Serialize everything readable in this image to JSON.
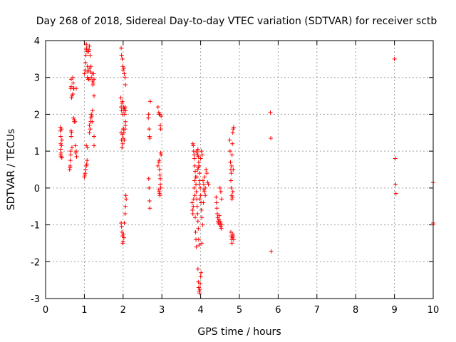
{
  "chart_data": {
    "type": "scatter",
    "title": "Day 268 of 2018, Sidereal Day-to-day VTEC variation (SDTVAR) for receiver sctb",
    "xlabel": "GPS time / hours",
    "ylabel": "SDTVAR / TECUs",
    "xlim": [
      0,
      10
    ],
    "ylim": [
      -3,
      4
    ],
    "xticks": [
      "0",
      "1",
      "2",
      "3",
      "4",
      "5",
      "6",
      "7",
      "8",
      "9",
      "10"
    ],
    "yticks": [
      "-3",
      "-2",
      "-1",
      "0",
      "1",
      "2",
      "3",
      "4"
    ],
    "grid": true,
    "marker": "plus",
    "color": "#ff0000",
    "series": [
      {
        "name": "SDTVAR",
        "points": [
          [
            0.38,
            1.65
          ],
          [
            0.38,
            1.55
          ],
          [
            0.39,
            1.4
          ],
          [
            0.39,
            1.2
          ],
          [
            0.39,
            1.05
          ],
          [
            0.39,
            0.9
          ],
          [
            0.4,
            0.85
          ],
          [
            0.4,
            0.95
          ],
          [
            0.41,
            1.15
          ],
          [
            0.41,
            1.6
          ],
          [
            0.42,
            1.3
          ],
          [
            0.42,
            0.82
          ],
          [
            0.62,
            0.5
          ],
          [
            0.63,
            0.55
          ],
          [
            0.63,
            0.6
          ],
          [
            0.64,
            0.75
          ],
          [
            0.65,
            0.9
          ],
          [
            0.65,
            1.0
          ],
          [
            0.66,
            1.4
          ],
          [
            0.67,
            1.5
          ],
          [
            0.68,
            1.1
          ],
          [
            0.66,
            1.55
          ],
          [
            0.65,
            2.7
          ],
          [
            0.66,
            2.75
          ],
          [
            0.66,
            2.95
          ],
          [
            0.67,
            2.45
          ],
          [
            0.68,
            2.5
          ],
          [
            0.7,
            2.55
          ],
          [
            0.7,
            3.0
          ],
          [
            0.71,
            2.85
          ],
          [
            0.72,
            2.7
          ],
          [
            0.73,
            2.7
          ],
          [
            0.72,
            1.9
          ],
          [
            0.74,
            1.85
          ],
          [
            0.74,
            1.8
          ],
          [
            0.76,
            1.8
          ],
          [
            0.77,
            1.15
          ],
          [
            0.78,
            0.95
          ],
          [
            0.79,
            1.0
          ],
          [
            0.8,
            0.85
          ],
          [
            0.79,
            2.7
          ],
          [
            1.0,
            0.3
          ],
          [
            1.01,
            0.35
          ],
          [
            1.02,
            0.4
          ],
          [
            1.03,
            0.5
          ],
          [
            1.05,
            0.6
          ],
          [
            1.06,
            0.65
          ],
          [
            1.07,
            0.75
          ],
          [
            1.05,
            1.15
          ],
          [
            1.08,
            1.1
          ],
          [
            1.0,
            3.1
          ],
          [
            1.02,
            3.2
          ],
          [
            1.03,
            3.4
          ],
          [
            1.04,
            3.6
          ],
          [
            1.05,
            3.75
          ],
          [
            1.05,
            3.9
          ],
          [
            1.06,
            3.8
          ],
          [
            1.07,
            3.7
          ],
          [
            1.08,
            3.3
          ],
          [
            1.08,
            3.0
          ],
          [
            1.09,
            3.15
          ],
          [
            1.1,
            3.2
          ],
          [
            1.11,
            3.7
          ],
          [
            1.12,
            3.75
          ],
          [
            1.13,
            3.85
          ],
          [
            1.14,
            3.25
          ],
          [
            1.15,
            3.6
          ],
          [
            1.16,
            3.15
          ],
          [
            1.17,
            3.3
          ],
          [
            1.18,
            3.0
          ],
          [
            1.1,
            2.95
          ],
          [
            1.12,
            2.95
          ],
          [
            1.13,
            1.7
          ],
          [
            1.13,
            1.5
          ],
          [
            1.15,
            1.6
          ],
          [
            1.16,
            1.8
          ],
          [
            1.17,
            1.9
          ],
          [
            1.18,
            2.0
          ],
          [
            1.19,
            1.95
          ],
          [
            1.2,
            1.8
          ],
          [
            1.21,
            2.1
          ],
          [
            1.2,
            3.1
          ],
          [
            1.21,
            2.9
          ],
          [
            1.22,
            2.8
          ],
          [
            1.23,
            2.85
          ],
          [
            1.24,
            3.1
          ],
          [
            1.25,
            2.95
          ],
          [
            1.25,
            2.5
          ],
          [
            1.25,
            1.15
          ],
          [
            1.25,
            1.4
          ],
          [
            1.95,
            3.8
          ],
          [
            1.96,
            3.6
          ],
          [
            1.98,
            3.5
          ],
          [
            1.99,
            3.3
          ],
          [
            2.0,
            3.2
          ],
          [
            2.02,
            3.25
          ],
          [
            2.03,
            3.1
          ],
          [
            2.05,
            3.0
          ],
          [
            2.06,
            2.8
          ],
          [
            1.94,
            2.45
          ],
          [
            1.95,
            2.2
          ],
          [
            1.96,
            2.1
          ],
          [
            1.97,
            2.3
          ],
          [
            1.98,
            2.35
          ],
          [
            1.99,
            2.0
          ],
          [
            2.0,
            1.6
          ],
          [
            2.01,
            2.2
          ],
          [
            2.02,
            2.1
          ],
          [
            2.03,
            2.15
          ],
          [
            2.04,
            2.0
          ],
          [
            2.05,
            2.2
          ],
          [
            2.06,
            1.8
          ],
          [
            2.07,
            2.1
          ],
          [
            1.95,
            1.5
          ],
          [
            1.96,
            1.3
          ],
          [
            1.97,
            1.1
          ],
          [
            1.98,
            1.45
          ],
          [
            1.99,
            1.2
          ],
          [
            2.0,
            1.35
          ],
          [
            2.01,
            1.6
          ],
          [
            2.02,
            1.5
          ],
          [
            2.03,
            1.3
          ],
          [
            2.05,
            1.6
          ],
          [
            2.06,
            1.7
          ],
          [
            1.95,
            -0.95
          ],
          [
            1.96,
            -1.05
          ],
          [
            1.97,
            -1.2
          ],
          [
            1.98,
            -1.3
          ],
          [
            1.99,
            -1.5
          ],
          [
            2.0,
            -1.45
          ],
          [
            2.01,
            -1.25
          ],
          [
            2.02,
            -1.35
          ],
          [
            2.03,
            -0.95
          ],
          [
            2.05,
            -0.7
          ],
          [
            2.06,
            -0.5
          ],
          [
            2.07,
            -0.2
          ],
          [
            2.08,
            -0.3
          ],
          [
            2.65,
            1.9
          ],
          [
            2.66,
            2.0
          ],
          [
            2.67,
            1.6
          ],
          [
            2.68,
            1.4
          ],
          [
            2.69,
            1.35
          ],
          [
            2.7,
            2.35
          ],
          [
            2.66,
            0.25
          ],
          [
            2.67,
            0.0
          ],
          [
            2.68,
            -0.35
          ],
          [
            2.69,
            -0.55
          ],
          [
            2.9,
            2.2
          ],
          [
            2.92,
            2.05
          ],
          [
            2.93,
            2.0
          ],
          [
            2.95,
            2.0
          ],
          [
            2.96,
            1.7
          ],
          [
            2.97,
            1.6
          ],
          [
            2.98,
            1.95
          ],
          [
            2.9,
            0.6
          ],
          [
            2.92,
            0.7
          ],
          [
            2.93,
            0.75
          ],
          [
            2.94,
            0.5
          ],
          [
            2.95,
            0.35
          ],
          [
            2.96,
            0.25
          ],
          [
            2.97,
            0.95
          ],
          [
            2.98,
            0.9
          ],
          [
            2.92,
            -0.05
          ],
          [
            2.93,
            -0.1
          ],
          [
            2.94,
            -0.15
          ],
          [
            2.95,
            -0.2
          ],
          [
            2.96,
            0.1
          ],
          [
            2.97,
            0.0
          ],
          [
            3.8,
            1.2
          ],
          [
            3.81,
            1.15
          ],
          [
            3.82,
            1.0
          ],
          [
            3.83,
            0.9
          ],
          [
            3.84,
            0.8
          ],
          [
            3.85,
            0.6
          ],
          [
            3.86,
            0.45
          ],
          [
            3.87,
            0.3
          ],
          [
            3.88,
            0.1
          ],
          [
            3.89,
            -0.1
          ],
          [
            3.9,
            -0.3
          ],
          [
            3.91,
            -0.5
          ],
          [
            3.92,
            -0.7
          ],
          [
            3.93,
            -0.9
          ],
          [
            3.94,
            -1.1
          ],
          [
            3.95,
            -1.4
          ],
          [
            3.96,
            -1.55
          ],
          [
            3.78,
            -0.4
          ],
          [
            3.79,
            -0.6
          ],
          [
            3.8,
            -0.7
          ],
          [
            3.81,
            -0.5
          ],
          [
            3.82,
            -0.3
          ],
          [
            3.83,
            0.0
          ],
          [
            3.84,
            0.2
          ],
          [
            3.85,
            -0.2
          ],
          [
            3.86,
            -0.8
          ],
          [
            3.87,
            -1.2
          ],
          [
            3.88,
            -1.4
          ],
          [
            3.89,
            -1.6
          ],
          [
            3.9,
            1.0
          ],
          [
            3.91,
            0.95
          ],
          [
            3.92,
            0.9
          ],
          [
            3.93,
            1.05
          ],
          [
            3.94,
            0.85
          ],
          [
            3.95,
            0.7
          ],
          [
            3.96,
            0.6
          ],
          [
            3.97,
            0.4
          ],
          [
            3.98,
            0.2
          ],
          [
            3.99,
            0.0
          ],
          [
            4.0,
            -0.2
          ],
          [
            4.01,
            -0.4
          ],
          [
            4.02,
            -0.6
          ],
          [
            4.03,
            -0.8
          ],
          [
            3.9,
            0.3
          ],
          [
            3.92,
            0.5
          ],
          [
            3.94,
            0.55
          ],
          [
            3.96,
            0.1
          ],
          [
            3.98,
            -0.3
          ],
          [
            4.0,
            0.8
          ],
          [
            4.02,
            1.0
          ],
          [
            4.04,
            0.9
          ],
          [
            4.06,
            0.2
          ],
          [
            4.08,
            0.1
          ],
          [
            4.1,
            0.3
          ],
          [
            4.12,
            0.0
          ],
          [
            4.14,
            0.5
          ],
          [
            4.16,
            0.4
          ],
          [
            4.18,
            0.15
          ],
          [
            4.2,
            0.1
          ],
          [
            4.08,
            -0.05
          ],
          [
            4.1,
            -0.1
          ],
          [
            4.12,
            -0.2
          ],
          [
            3.93,
            -2.2
          ],
          [
            3.94,
            -2.55
          ],
          [
            3.95,
            -2.7
          ],
          [
            3.96,
            -2.8
          ],
          [
            3.97,
            -2.85
          ],
          [
            3.98,
            -2.75
          ],
          [
            3.99,
            -2.6
          ],
          [
            4.0,
            -2.4
          ],
          [
            4.01,
            -2.3
          ],
          [
            4.03,
            -1.5
          ],
          [
            4.05,
            -1.0
          ],
          [
            4.07,
            -0.4
          ],
          [
            4.4,
            -0.25
          ],
          [
            4.41,
            -0.4
          ],
          [
            4.42,
            -0.55
          ],
          [
            4.43,
            -0.7
          ],
          [
            4.44,
            -0.8
          ],
          [
            4.45,
            -0.9
          ],
          [
            4.46,
            -0.95
          ],
          [
            4.47,
            -0.85
          ],
          [
            4.48,
            -0.75
          ],
          [
            4.49,
            -1.0
          ],
          [
            4.5,
            -0.9
          ],
          [
            4.51,
            -0.95
          ],
          [
            4.52,
            -1.05
          ],
          [
            4.53,
            -1.1
          ],
          [
            4.54,
            -1.0
          ],
          [
            4.5,
            0.0
          ],
          [
            4.52,
            -0.1
          ],
          [
            4.54,
            -0.3
          ],
          [
            4.75,
            1.3
          ],
          [
            4.76,
            1.0
          ],
          [
            4.77,
            0.7
          ],
          [
            4.78,
            0.5
          ],
          [
            4.79,
            0.4
          ],
          [
            4.8,
            0.6
          ],
          [
            4.81,
            0.9
          ],
          [
            4.82,
            1.2
          ],
          [
            4.83,
            1.5
          ],
          [
            4.84,
            1.6
          ],
          [
            4.85,
            1.65
          ],
          [
            4.78,
            0.2
          ],
          [
            4.79,
            0.0
          ],
          [
            4.8,
            -0.2
          ],
          [
            4.81,
            -0.3
          ],
          [
            4.82,
            -0.25
          ],
          [
            4.83,
            -0.1
          ],
          [
            4.84,
            0.5
          ],
          [
            4.78,
            -1.2
          ],
          [
            4.79,
            -1.3
          ],
          [
            4.8,
            -1.4
          ],
          [
            4.81,
            -1.5
          ],
          [
            4.82,
            -1.35
          ],
          [
            4.83,
            -1.25
          ],
          [
            4.84,
            -1.3
          ],
          [
            4.85,
            -1.4
          ],
          [
            5.8,
            2.05
          ],
          [
            5.81,
            1.35
          ],
          [
            5.82,
            -1.72
          ],
          [
            9.0,
            3.5
          ],
          [
            9.02,
            0.8
          ],
          [
            9.03,
            0.1
          ],
          [
            9.04,
            -0.15
          ],
          [
            10.0,
            0.15
          ],
          [
            10.0,
            -0.95
          ],
          [
            10.0,
            -1.0
          ]
        ]
      }
    ]
  }
}
